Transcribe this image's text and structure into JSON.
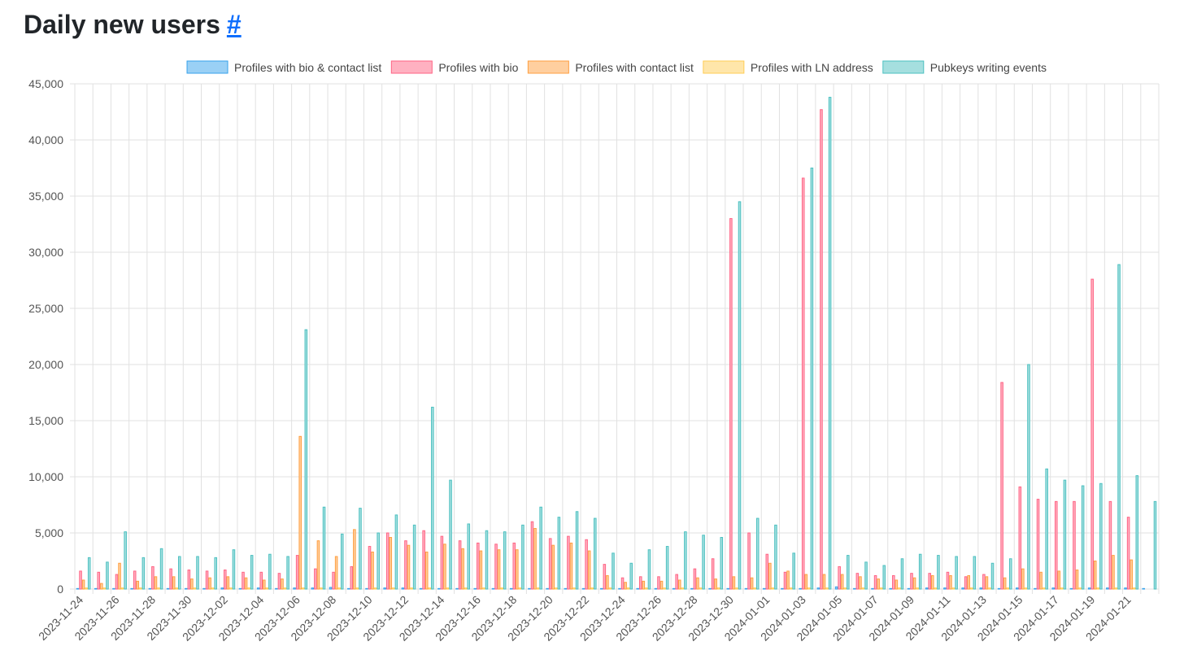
{
  "page": {
    "title": "Daily new users",
    "anchor": "#"
  },
  "chart_data": {
    "type": "bar",
    "title": "Daily new users",
    "legend_position": "top",
    "ylim": [
      0,
      45000
    ],
    "y_ticks": [
      0,
      5000,
      10000,
      15000,
      20000,
      25000,
      30000,
      35000,
      40000,
      45000
    ],
    "y_tick_labels": [
      "0",
      "5,000",
      "10,000",
      "15,000",
      "20,000",
      "25,000",
      "30,000",
      "35,000",
      "40,000",
      "45,000"
    ],
    "grid": true,
    "categories": [
      "2023-11-24",
      "2023-11-25",
      "2023-11-26",
      "2023-11-27",
      "2023-11-28",
      "2023-11-29",
      "2023-11-30",
      "2023-12-01",
      "2023-12-02",
      "2023-12-03",
      "2023-12-04",
      "2023-12-05",
      "2023-12-06",
      "2023-12-07",
      "2023-12-08",
      "2023-12-09",
      "2023-12-10",
      "2023-12-11",
      "2023-12-12",
      "2023-12-13",
      "2023-12-14",
      "2023-12-15",
      "2023-12-16",
      "2023-12-17",
      "2023-12-18",
      "2023-12-19",
      "2023-12-20",
      "2023-12-21",
      "2023-12-22",
      "2023-12-23",
      "2023-12-24",
      "2023-12-25",
      "2023-12-26",
      "2023-12-27",
      "2023-12-28",
      "2023-12-29",
      "2023-12-30",
      "2023-12-31",
      "2024-01-01",
      "2024-01-02",
      "2024-01-03",
      "2024-01-04",
      "2024-01-05",
      "2024-01-06",
      "2024-01-07",
      "2024-01-08",
      "2024-01-09",
      "2024-01-10",
      "2024-01-11",
      "2024-01-12",
      "2024-01-13",
      "2024-01-14",
      "2024-01-15",
      "2024-01-16",
      "2024-01-17",
      "2024-01-18",
      "2024-01-19",
      "2024-01-20",
      "2024-01-21",
      "2024-01-22"
    ],
    "x_tick_labels": [
      "2023-11-24",
      "",
      "2023-11-26",
      "",
      "2023-11-28",
      "",
      "2023-11-30",
      "",
      "2023-12-02",
      "",
      "2023-12-04",
      "",
      "2023-12-06",
      "",
      "2023-12-08",
      "",
      "2023-12-10",
      "",
      "2023-12-12",
      "",
      "2023-12-14",
      "",
      "2023-12-16",
      "",
      "2023-12-18",
      "",
      "2023-12-20",
      "",
      "2023-12-22",
      "",
      "2023-12-24",
      "",
      "2023-12-26",
      "",
      "2023-12-28",
      "",
      "2023-12-30",
      "",
      "2024-01-01",
      "",
      "2024-01-03",
      "",
      "2024-01-05",
      "",
      "2024-01-07",
      "",
      "2024-01-09",
      "",
      "2024-01-11",
      "",
      "2024-01-13",
      "",
      "2024-01-15",
      "",
      "2024-01-17",
      "",
      "2024-01-19",
      "",
      "2024-01-21",
      ""
    ],
    "series": [
      {
        "name": "Profiles with bio & contact list",
        "fill": "#9ad0f5",
        "stroke": "#36a2eb",
        "values": [
          50,
          50,
          50,
          50,
          50,
          50,
          50,
          50,
          100,
          50,
          100,
          50,
          100,
          100,
          150,
          50,
          50,
          100,
          100,
          50,
          50,
          50,
          50,
          50,
          50,
          50,
          50,
          50,
          50,
          50,
          50,
          50,
          50,
          50,
          50,
          50,
          50,
          50,
          50,
          50,
          50,
          100,
          200,
          50,
          50,
          50,
          50,
          100,
          100,
          100,
          100,
          50,
          100,
          50,
          100,
          50,
          100,
          100,
          100,
          50
        ]
      },
      {
        "name": "Profiles with bio",
        "fill": "#ffb1c1",
        "stroke": "#ff6384",
        "values": [
          1600,
          1500,
          1300,
          1600,
          2000,
          1800,
          1700,
          1600,
          1700,
          1500,
          1500,
          1400,
          3000,
          1800,
          1500,
          2000,
          3800,
          5000,
          4300,
          5200,
          4700,
          4300,
          4100,
          4000,
          4100,
          6000,
          4500,
          4700,
          4400,
          2200,
          1000,
          1100,
          1100,
          1300,
          1800,
          2700,
          33000,
          5000,
          3100,
          1500,
          36600,
          42700,
          2000,
          1400,
          1200,
          1200,
          1400,
          1400,
          1500,
          1100,
          1300,
          18400,
          9100,
          8000,
          7800,
          7800,
          27600,
          7800,
          6400,
          0
        ]
      },
      {
        "name": "Profiles with contact list",
        "fill": "#ffcf9f",
        "stroke": "#ff9f40",
        "values": [
          800,
          500,
          2300,
          700,
          1100,
          1100,
          900,
          1000,
          1100,
          1000,
          800,
          900,
          13600,
          4300,
          2900,
          5300,
          3300,
          4600,
          3900,
          3300,
          4000,
          3600,
          3400,
          3500,
          3500,
          5400,
          3900,
          4100,
          3400,
          1200,
          600,
          700,
          700,
          800,
          1000,
          900,
          1100,
          1000,
          2300,
          1600,
          1300,
          1300,
          1300,
          1100,
          900,
          800,
          1000,
          1200,
          1200,
          1200,
          1100,
          1000,
          1800,
          1500,
          1600,
          1700,
          2500,
          3000,
          2600,
          0
        ]
      },
      {
        "name": "Profiles with LN address",
        "fill": "#ffe6aa",
        "stroke": "#ffcd56",
        "values": [
          100,
          100,
          100,
          100,
          100,
          100,
          100,
          100,
          100,
          100,
          100,
          100,
          100,
          100,
          100,
          100,
          100,
          100,
          100,
          100,
          100,
          100,
          100,
          100,
          100,
          100,
          100,
          100,
          100,
          100,
          100,
          100,
          100,
          100,
          100,
          100,
          100,
          100,
          100,
          100,
          100,
          100,
          100,
          100,
          100,
          100,
          100,
          100,
          100,
          100,
          100,
          100,
          100,
          100,
          100,
          100,
          100,
          100,
          100,
          0
        ]
      },
      {
        "name": "Pubkeys writing events",
        "fill": "#a5dfdf",
        "stroke": "#4bc0c0",
        "values": [
          2800,
          2400,
          5100,
          2800,
          3600,
          2900,
          2900,
          2800,
          3500,
          3000,
          3100,
          2900,
          23100,
          7300,
          4900,
          7200,
          5000,
          6600,
          5700,
          16200,
          9700,
          5800,
          5200,
          5100,
          5700,
          7300,
          6400,
          6900,
          6300,
          3200,
          2300,
          3500,
          3800,
          5100,
          4800,
          4600,
          34500,
          6300,
          5700,
          3200,
          37500,
          43800,
          3000,
          2400,
          2100,
          2700,
          3100,
          3000,
          2900,
          2900,
          2300,
          2700,
          20000,
          10700,
          9700,
          9200,
          9400,
          28900,
          10100,
          7800
        ]
      }
    ]
  }
}
